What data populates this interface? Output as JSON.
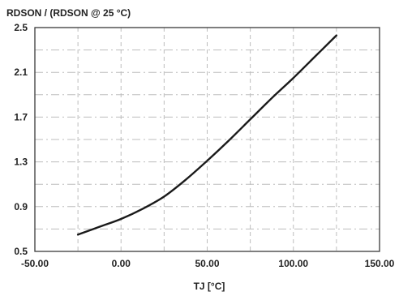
{
  "chart_data": {
    "type": "line",
    "ylabel": "RDSON / (RDSON @ 25 °C)",
    "xlabel": "TJ [°C]",
    "xlim": [
      -50,
      150
    ],
    "ylim": [
      0.5,
      2.5
    ],
    "x_ticks": [
      -50,
      0,
      50,
      100,
      150
    ],
    "x_tick_labels": [
      "-50.00",
      "0.00",
      "50.00",
      "100.00",
      "150.00"
    ],
    "y_ticks": [
      0.5,
      0.9,
      1.3,
      1.7,
      2.1,
      2.5
    ],
    "y_tick_labels": [
      "0.5",
      "0.9",
      "1.3",
      "1.7",
      "2.1",
      "2.5"
    ],
    "grid": true,
    "series": [
      {
        "x": [
          -25,
          -12.5,
          0,
          12.5,
          25,
          37.5,
          50,
          62.5,
          75,
          87.5,
          100,
          112.5,
          125
        ],
        "y": [
          0.65,
          0.72,
          0.79,
          0.88,
          0.99,
          1.14,
          1.31,
          1.49,
          1.68,
          1.87,
          2.05,
          2.24,
          2.43
        ]
      }
    ]
  }
}
